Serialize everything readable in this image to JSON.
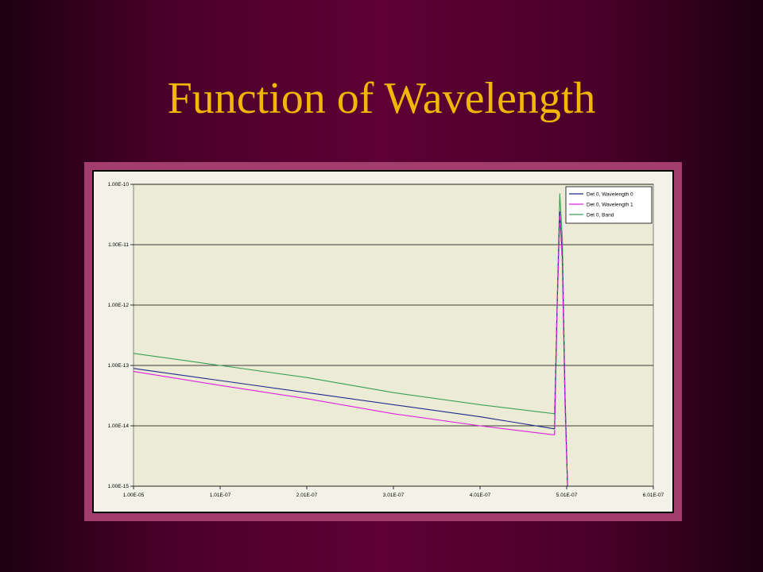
{
  "slide": {
    "title": "Function of Wavelength"
  },
  "chart_data": {
    "type": "line",
    "title": "",
    "xlabel": "",
    "ylabel": "",
    "x_tick_labels": [
      "1.00E-05",
      "1.01E-07",
      "2.01E-07",
      "3.01E-07",
      "4.01E-07",
      "5.01E-07",
      "6.01E-07"
    ],
    "y_tick_labels": [
      "1.00E-10",
      "1.00E-11",
      "1.00E-12",
      "1.00E-13",
      "1.00E-14",
      "1.00E-15"
    ],
    "xlim": [
      1e-05,
      6.01e-07
    ],
    "ylim_log10": [
      -15,
      -10
    ],
    "y_scale": "log",
    "grid": "horizontal",
    "plot_background": "#ebebd6",
    "legend_position": "top-right",
    "series": [
      {
        "name": "Det 0, Wavelength 0",
        "color": "#1f2a8c",
        "points": [
          [
            1e-05,
            -13.05
          ],
          [
            1.01e-07,
            -13.25
          ],
          [
            2.01e-07,
            -13.45
          ],
          [
            3.01e-07,
            -13.65
          ],
          [
            4.01e-07,
            -13.85
          ],
          [
            4.87e-07,
            -14.05
          ],
          [
            4.9e-07,
            -12.0
          ],
          [
            4.93e-07,
            -10.45
          ],
          [
            4.96e-07,
            -11.2
          ],
          [
            4.99e-07,
            -13.5
          ],
          [
            5.02e-07,
            -15.0
          ]
        ]
      },
      {
        "name": "Det 0, Wavelength 1",
        "color": "#e020e0",
        "dash_after_x": 4.87e-07,
        "points": [
          [
            1e-05,
            -13.1
          ],
          [
            1.01e-07,
            -13.33
          ],
          [
            2.01e-07,
            -13.55
          ],
          [
            3.01e-07,
            -13.8
          ],
          [
            4.01e-07,
            -14.0
          ],
          [
            4.87e-07,
            -14.15
          ],
          [
            4.9e-07,
            -12.0
          ],
          [
            4.93e-07,
            -10.5
          ],
          [
            4.96e-07,
            -11.3
          ],
          [
            4.99e-07,
            -13.6
          ],
          [
            5.02e-07,
            -15.0
          ]
        ]
      },
      {
        "name": "Det 0, Band",
        "color": "#3aa055",
        "points": [
          [
            1e-05,
            -12.8
          ],
          [
            1.01e-07,
            -13.0
          ],
          [
            2.01e-07,
            -13.2
          ],
          [
            3.01e-07,
            -13.45
          ],
          [
            4.01e-07,
            -13.65
          ],
          [
            4.87e-07,
            -13.8
          ],
          [
            4.9e-07,
            -12.0
          ],
          [
            4.93e-07,
            -10.15
          ],
          [
            4.96e-07,
            -10.9
          ],
          [
            4.99e-07,
            -13.4
          ],
          [
            5.02e-07,
            -15.0
          ]
        ]
      }
    ]
  }
}
